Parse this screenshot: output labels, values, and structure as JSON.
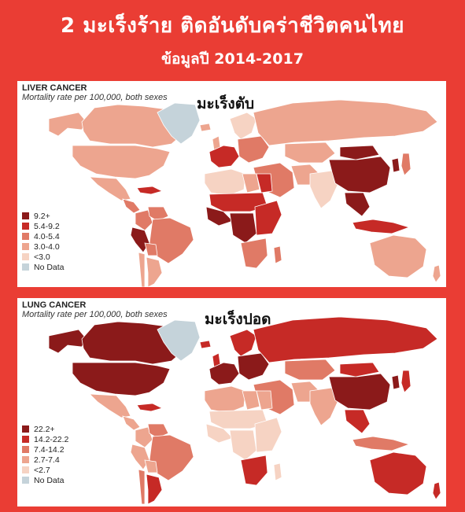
{
  "header": {
    "title": "2 มะเร็งร้าย ติดอันดับคร่าชีวิตคนไทย",
    "subtitle": "ข้อมูลปี 2014-2017"
  },
  "colors": {
    "background": "#ea3d34",
    "c1": "#8b1a1a",
    "c2": "#c62a26",
    "c3": "#e07a66",
    "c4": "#eda58f",
    "c5": "#f6d3c3",
    "nodata": "#c5d3da"
  },
  "liver": {
    "title": "LIVER CANCER",
    "subtitle": "Mortality rate per 100,000, both sexes",
    "thai_label": "มะเร็งตับ",
    "legend": [
      "9.2+",
      "5.4-9.2",
      "4.0-5.4",
      "3.0-4.0",
      "<3.0",
      "No Data"
    ],
    "regions": {
      "canada": "c4",
      "usa": "c4",
      "alaska": "c4",
      "greenland": "nodata",
      "mexico": "c4",
      "central_america": "c3",
      "caribbean": "c2",
      "colombia": "c3",
      "venezuela": "c3",
      "peru": "c1",
      "brazil": "c3",
      "bolivia": "c3",
      "argentina": "c4",
      "chile": "c4",
      "iceland": "c4",
      "uk": "c4",
      "scandinavia": "c5",
      "western_europe": "c2",
      "eastern_europe": "c3",
      "russia": "c4",
      "central_asia": "c4",
      "middle_east": "c3",
      "north_africa_west": "c5",
      "egypt": "c2",
      "libya": "c4",
      "sahel": "c2",
      "west_africa": "c1",
      "central_africa": "c1",
      "east_africa": "c2",
      "southern_africa": "c3",
      "madagascar": "c3",
      "iran": "c4",
      "india": "c5",
      "china": "c1",
      "mongolia": "c1",
      "korea": "c1",
      "japan": "c3",
      "southeast_asia": "c1",
      "indonesia": "c2",
      "australia": "c4",
      "new_zealand": "c4"
    }
  },
  "lung": {
    "title": "LUNG CANCER",
    "subtitle": "Mortality rate per 100,000, both sexes",
    "thai_label": "มะเร็งปอด",
    "legend": [
      "22.2+",
      "14.2-22.2",
      "7.4-14.2",
      "2.7-7.4",
      "<2.7",
      "No Data"
    ],
    "regions": {
      "canada": "c1",
      "usa": "c1",
      "alaska": "c1",
      "greenland": "nodata",
      "mexico": "c4",
      "central_america": "c4",
      "caribbean": "c2",
      "colombia": "c4",
      "venezuela": "c3",
      "peru": "c4",
      "brazil": "c3",
      "bolivia": "c4",
      "argentina": "c2",
      "chile": "c3",
      "iceland": "c2",
      "uk": "c2",
      "scandinavia": "c2",
      "western_europe": "c1",
      "eastern_europe": "c1",
      "russia": "c2",
      "central_asia": "c3",
      "middle_east": "c3",
      "north_africa_west": "c4",
      "egypt": "c4",
      "libya": "c4",
      "sahel": "c5",
      "west_africa": "c5",
      "central_africa": "c5",
      "east_africa": "c5",
      "southern_africa": "c2",
      "madagascar": "c5",
      "iran": "c4",
      "india": "c4",
      "china": "c1",
      "mongolia": "c2",
      "korea": "c1",
      "japan": "c2",
      "southeast_asia": "c2",
      "indonesia": "c3",
      "australia": "c2",
      "new_zealand": "c2"
    }
  }
}
